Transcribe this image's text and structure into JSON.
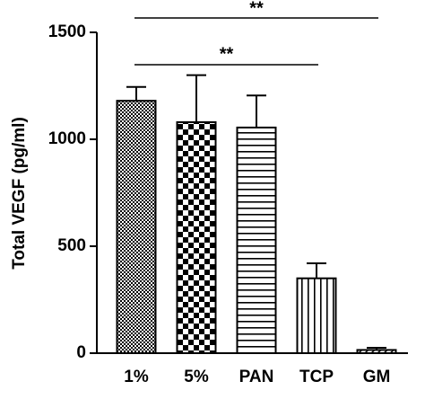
{
  "chart_data": {
    "type": "bar",
    "y_label": "Total VEGF (pg/ml)",
    "categories": [
      "1%",
      "5%",
      "PAN",
      "TCP",
      "GM"
    ],
    "values": [
      1180,
      1080,
      1055,
      350,
      15
    ],
    "errors": [
      65,
      220,
      150,
      70,
      10
    ],
    "color": "#000000",
    "ylim": [
      0,
      1500
    ],
    "yticks": [
      0,
      500,
      1000,
      1500
    ],
    "annotations": [
      "**",
      "**"
    ]
  }
}
